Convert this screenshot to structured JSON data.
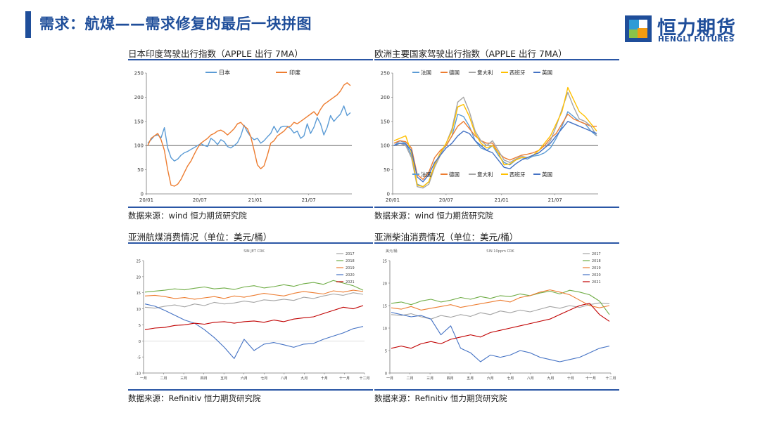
{
  "header": {
    "title": "需求：航煤——需求修复的最后一块拼图",
    "logo_cn": "恒力期货",
    "logo_en": "HENGLI FUTURES"
  },
  "chart_data": [
    {
      "id": "c1",
      "type": "line",
      "title": "日本印度驾驶出行指数（APPLE 出行 7MA）",
      "source": "数据来源：wind  恒力期货研究院",
      "ylim": [
        0,
        250
      ],
      "yticks": [
        "0",
        "50",
        "100",
        "150",
        "200",
        "250"
      ],
      "xticks": [
        "20/01",
        "20/07",
        "21/01",
        "21/07"
      ],
      "reference_line": 100,
      "legend_position": "top",
      "series": [
        {
          "name": "日本",
          "color": "#5b9bd5",
          "values": [
            105,
            112,
            120,
            122,
            116,
            137,
            95,
            75,
            68,
            72,
            80,
            85,
            88,
            92,
            96,
            100,
            104,
            100,
            98,
            115,
            110,
            102,
            112,
            108,
            98,
            95,
            100,
            106,
            120,
            142,
            128,
            118,
            112,
            115,
            105,
            110,
            118,
            125,
            140,
            127,
            138,
            140,
            140,
            135,
            126,
            130,
            115,
            120,
            145,
            125,
            138,
            158,
            145,
            122,
            138,
            162,
            150,
            158,
            165,
            182,
            162,
            168
          ]
        },
        {
          "name": "印度",
          "color": "#ed7d31",
          "values": [
            100,
            115,
            120,
            125,
            112,
            90,
            50,
            18,
            16,
            20,
            30,
            44,
            58,
            68,
            82,
            95,
            105,
            110,
            115,
            122,
            125,
            130,
            132,
            128,
            122,
            128,
            135,
            145,
            148,
            140,
            135,
            118,
            90,
            60,
            52,
            58,
            80,
            105,
            110,
            120,
            125,
            130,
            138,
            140,
            148,
            145,
            150,
            155,
            160,
            165,
            170,
            162,
            175,
            185,
            190,
            195,
            200,
            205,
            213,
            225,
            230,
            224
          ]
        }
      ]
    },
    {
      "id": "c2",
      "type": "line",
      "title": "欧洲主要国家驾驶出行指数（APPLE 出行 7MA）",
      "source": "数据来源：wind  恒力期货研究院",
      "ylim": [
        0,
        250
      ],
      "yticks": [
        "0",
        "50",
        "100",
        "150",
        "200",
        "250"
      ],
      "xticks": [
        "20/01",
        "20/07",
        "21/01",
        "21/07"
      ],
      "reference_line": 100,
      "legend_position": "top and bottom",
      "series": [
        {
          "name": "法国",
          "color": "#5b9bd5",
          "values": [
            100,
            110,
            105,
            80,
            20,
            15,
            25,
            60,
            85,
            100,
            120,
            165,
            160,
            140,
            110,
            95,
            90,
            100,
            80,
            65,
            60,
            70,
            75,
            72,
            78,
            80,
            85,
            95,
            115,
            140,
            170,
            160,
            150,
            145,
            130,
            120
          ]
        },
        {
          "name": "德国",
          "color": "#ed7d31",
          "values": [
            105,
            110,
            108,
            95,
            40,
            30,
            45,
            75,
            90,
            100,
            120,
            140,
            150,
            135,
            120,
            110,
            105,
            105,
            85,
            75,
            70,
            75,
            80,
            82,
            85,
            90,
            100,
            115,
            125,
            145,
            165,
            155,
            150,
            145,
            140,
            140
          ]
        },
        {
          "name": "意大利",
          "color": "#a5a5a5",
          "values": [
            100,
            105,
            100,
            75,
            15,
            12,
            20,
            55,
            80,
            105,
            135,
            190,
            200,
            170,
            130,
            110,
            100,
            110,
            90,
            70,
            65,
            72,
            78,
            75,
            80,
            85,
            95,
            110,
            140,
            175,
            210,
            180,
            155,
            150,
            140,
            120
          ]
        },
        {
          "name": "西班牙",
          "color": "#ffc000",
          "values": [
            110,
            115,
            120,
            85,
            18,
            15,
            25,
            60,
            85,
            105,
            130,
            180,
            185,
            160,
            125,
            105,
            95,
            100,
            85,
            60,
            62,
            70,
            75,
            75,
            80,
            90,
            105,
            120,
            145,
            170,
            220,
            195,
            170,
            160,
            145,
            130
          ]
        },
        {
          "name": "英国",
          "color": "#4472c4",
          "values": [
            100,
            105,
            103,
            90,
            35,
            25,
            40,
            65,
            80,
            95,
            105,
            120,
            130,
            125,
            110,
            100,
            90,
            85,
            70,
            55,
            52,
            62,
            70,
            75,
            80,
            85,
            95,
            105,
            120,
            135,
            150,
            145,
            140,
            135,
            130,
            125
          ]
        }
      ]
    },
    {
      "id": "c3",
      "type": "line",
      "title": "亚洲航煤消费情况（单位：美元/桶）",
      "source": "数据来源：Refinitiv  恒力期货研究院",
      "chart_caption": "SIN JET CRK",
      "ylim": [
        -10,
        25
      ],
      "yticks": [
        "-10",
        "-5",
        "0",
        "5",
        "10",
        "15",
        "20",
        "25"
      ],
      "xticks": [
        "一月",
        "二月",
        "三月",
        "四月",
        "五月",
        "六月",
        "七月",
        "八月",
        "九月",
        "十月",
        "十一月",
        "十二月"
      ],
      "legend_position": "top-right",
      "series": [
        {
          "name": "2017",
          "color": "#a5a5a5",
          "values": [
            10.5,
            10.2,
            10.8,
            11.2,
            10.6,
            11.5,
            11.0,
            12.0,
            11.5,
            11.8,
            12.4,
            12.0,
            12.8,
            12.5,
            13.0,
            12.6,
            13.6,
            13.2,
            14.0,
            14.6,
            14.2,
            15.0,
            14.5
          ]
        },
        {
          "name": "2018",
          "color": "#70ad47",
          "values": [
            15.2,
            15.5,
            15.8,
            16.2,
            15.9,
            16.4,
            16.8,
            16.2,
            16.5,
            16.0,
            16.8,
            17.2,
            16.5,
            16.9,
            17.5,
            17.0,
            17.8,
            18.2,
            17.6,
            18.8,
            18.0,
            17.2,
            15.8
          ]
        },
        {
          "name": "2019",
          "color": "#ed7d31",
          "values": [
            14.0,
            14.2,
            13.8,
            13.2,
            13.5,
            13.0,
            13.4,
            13.8,
            13.2,
            14.0,
            13.6,
            14.2,
            14.8,
            14.4,
            14.0,
            14.8,
            15.4,
            15.0,
            14.6,
            15.6,
            15.2,
            15.8,
            15.4
          ]
        },
        {
          "name": "2020",
          "color": "#4472c4",
          "values": [
            11.5,
            10.8,
            9.5,
            8.0,
            6.5,
            5.5,
            3.5,
            1.0,
            -2.0,
            -5.5,
            0.5,
            -3.0,
            -1.0,
            -0.5,
            -1.2,
            -2.0,
            -1.0,
            -0.8,
            0.5,
            1.5,
            2.5,
            3.8,
            4.5
          ]
        },
        {
          "name": "2021",
          "color": "#c00000",
          "values": [
            3.5,
            4.0,
            4.2,
            4.8,
            5.0,
            5.5,
            5.2,
            5.8,
            6.0,
            5.5,
            6.0,
            6.2,
            5.8,
            6.5,
            6.0,
            6.8,
            7.2,
            7.5,
            8.5,
            9.5,
            10.5,
            10.0,
            11.0
          ]
        }
      ]
    },
    {
      "id": "c4",
      "type": "line",
      "title": "亚洲柴油消费情况（单位：美元/桶）",
      "source": "数据来源：Refinitiv  恒力期货研究院",
      "chart_caption": "SIN 10ppm CRK",
      "y_unit": "美元/桶",
      "ylim": [
        0,
        25
      ],
      "yticks": [
        "0",
        "5",
        "10",
        "15",
        "20",
        "25"
      ],
      "xticks": [
        "一月",
        "二月",
        "三月",
        "四月",
        "五月",
        "六月",
        "七月",
        "八月",
        "九月",
        "十月",
        "十一月",
        "十二月"
      ],
      "legend_position": "top-right",
      "series": [
        {
          "name": "2017",
          "color": "#a5a5a5",
          "values": [
            13.0,
            12.8,
            13.2,
            12.5,
            12.0,
            12.8,
            12.4,
            13.0,
            12.6,
            13.4,
            13.0,
            13.8,
            13.4,
            14.0,
            13.6,
            14.2,
            14.8,
            14.4,
            15.0,
            14.6,
            15.2,
            15.6,
            15.4
          ]
        },
        {
          "name": "2018",
          "color": "#70ad47",
          "values": [
            15.5,
            15.8,
            15.2,
            16.0,
            16.4,
            15.8,
            16.2,
            16.8,
            16.4,
            17.0,
            16.6,
            17.2,
            17.0,
            17.6,
            17.2,
            17.8,
            18.2,
            17.6,
            18.4,
            18.0,
            17.4,
            16.0,
            13.0
          ]
        },
        {
          "name": "2019",
          "color": "#ed7d31",
          "values": [
            14.5,
            14.2,
            14.8,
            14.0,
            14.4,
            14.8,
            15.2,
            14.6,
            15.0,
            15.4,
            15.8,
            16.2,
            15.8,
            16.8,
            17.2,
            18.0,
            18.5,
            18.0,
            17.4,
            16.2,
            15.0,
            14.5,
            15.0
          ]
        },
        {
          "name": "2020",
          "color": "#4472c4",
          "values": [
            13.5,
            13.0,
            12.5,
            12.8,
            12.0,
            8.5,
            10.5,
            5.5,
            4.5,
            2.5,
            4.0,
            3.5,
            4.0,
            5.0,
            4.5,
            3.5,
            3.0,
            2.5,
            3.0,
            3.5,
            4.5,
            5.5,
            6.0
          ]
        },
        {
          "name": "2021",
          "color": "#c00000",
          "values": [
            5.5,
            6.0,
            5.5,
            6.5,
            7.0,
            6.5,
            7.5,
            8.0,
            8.5,
            8.0,
            9.0,
            9.5,
            10.0,
            10.5,
            11.0,
            11.5,
            12.0,
            13.0,
            14.0,
            15.0,
            15.5,
            13.0,
            11.5
          ]
        }
      ]
    }
  ]
}
